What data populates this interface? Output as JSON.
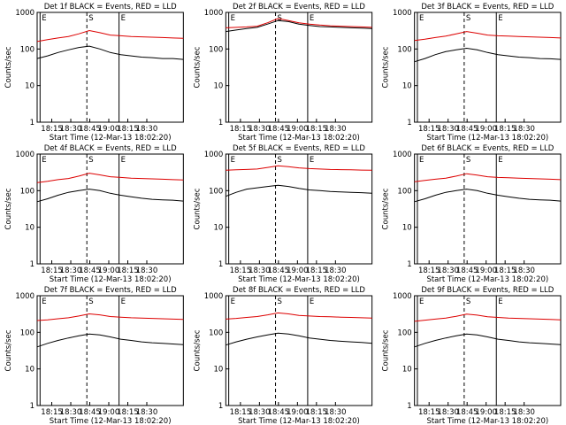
{
  "x_tick_labels": [
    "18:15",
    "18:30",
    "18:45",
    "19:00",
    "18:15",
    "18:30"
  ],
  "y_tick_labels": [
    "1",
    "10",
    "100",
    "1000"
  ],
  "ylabel": "Counts/sec",
  "xlabel": "Start Time (12-Mar-13 18:02:20)",
  "marker_labels": {
    "start": "E",
    "middle": "S",
    "end": "E"
  },
  "colors": {
    "events": "#000000",
    "lld": "#dd0000",
    "axes": "#000000"
  },
  "chart_data": [
    {
      "type": "line",
      "title": "Det 1f BLACK = Events, RED = LLD",
      "x": [
        0,
        1,
        2,
        3,
        4,
        5,
        6,
        7,
        8,
        9,
        10,
        11,
        12,
        13,
        14
      ],
      "series": [
        {
          "values": [
            160,
            180,
            200,
            220,
            260,
            320,
            280,
            240,
            230,
            220,
            215,
            210,
            205,
            200,
            195
          ],
          "color": "#dd0000"
        },
        {
          "values": [
            55,
            65,
            80,
            95,
            110,
            120,
            100,
            80,
            70,
            65,
            60,
            58,
            55,
            55,
            52
          ],
          "color": "#000000"
        }
      ],
      "ylim": [
        1,
        1000
      ],
      "yscale": "log"
    },
    {
      "type": "line",
      "title": "Det 2f BLACK = Events, RED = LLD",
      "x": [
        0,
        1,
        2,
        3,
        4,
        5,
        6,
        7,
        8,
        9,
        10,
        11,
        12,
        13,
        14
      ],
      "series": [
        {
          "values": [
            380,
            390,
            400,
            420,
            520,
            680,
            600,
            520,
            480,
            450,
            430,
            420,
            410,
            400,
            390
          ],
          "color": "#dd0000"
        },
        {
          "values": [
            300,
            330,
            360,
            390,
            480,
            600,
            560,
            480,
            440,
            410,
            400,
            390,
            380,
            370,
            360
          ],
          "color": "#000000"
        }
      ],
      "ylim": [
        1,
        1000
      ],
      "yscale": "log"
    },
    {
      "type": "line",
      "title": "Det 3f BLACK = Events, RED = LLD",
      "x": [
        0,
        1,
        2,
        3,
        4,
        5,
        6,
        7,
        8,
        9,
        10,
        11,
        12,
        13,
        14
      ],
      "series": [
        {
          "values": [
            170,
            185,
            205,
            225,
            260,
            300,
            270,
            240,
            230,
            225,
            220,
            215,
            210,
            205,
            200
          ],
          "color": "#dd0000"
        },
        {
          "values": [
            45,
            55,
            70,
            85,
            95,
            105,
            95,
            80,
            70,
            65,
            60,
            58,
            55,
            54,
            52
          ],
          "color": "#000000"
        }
      ],
      "ylim": [
        1,
        1000
      ],
      "yscale": "log"
    },
    {
      "type": "line",
      "title": "Det 4f BLACK = Events, RED = LLD",
      "x": [
        0,
        1,
        2,
        3,
        4,
        5,
        6,
        7,
        8,
        9,
        10,
        11,
        12,
        13,
        14
      ],
      "series": [
        {
          "values": [
            165,
            180,
            200,
            215,
            250,
            300,
            270,
            240,
            230,
            220,
            215,
            210,
            205,
            200,
            195
          ],
          "color": "#dd0000"
        },
        {
          "values": [
            50,
            60,
            75,
            90,
            100,
            110,
            100,
            85,
            75,
            68,
            62,
            58,
            56,
            55,
            52
          ],
          "color": "#000000"
        }
      ],
      "ylim": [
        1,
        1000
      ],
      "yscale": "log"
    },
    {
      "type": "line",
      "title": "Det 5f BLACK = Events, RED = LLD",
      "x": [
        0,
        1,
        2,
        3,
        4,
        5,
        6,
        7,
        8,
        9,
        10,
        11,
        12,
        13,
        14
      ],
      "series": [
        {
          "values": [
            360,
            370,
            380,
            390,
            430,
            480,
            450,
            420,
            400,
            390,
            380,
            375,
            370,
            365,
            360
          ],
          "color": "#dd0000"
        },
        {
          "values": [
            70,
            90,
            110,
            120,
            130,
            140,
            130,
            115,
            105,
            100,
            95,
            92,
            90,
            88,
            85
          ],
          "color": "#000000"
        }
      ],
      "ylim": [
        1,
        1000
      ],
      "yscale": "log"
    },
    {
      "type": "line",
      "title": "Det 6f BLACK = Events, RED = LLD",
      "x": [
        0,
        1,
        2,
        3,
        4,
        5,
        6,
        7,
        8,
        9,
        10,
        11,
        12,
        13,
        14
      ],
      "series": [
        {
          "values": [
            175,
            190,
            205,
            220,
            250,
            290,
            265,
            240,
            230,
            225,
            220,
            215,
            210,
            205,
            200
          ],
          "color": "#dd0000"
        },
        {
          "values": [
            50,
            60,
            75,
            90,
            100,
            110,
            100,
            85,
            75,
            68,
            62,
            58,
            56,
            55,
            52
          ],
          "color": "#000000"
        }
      ],
      "ylim": [
        1,
        1000
      ],
      "yscale": "log"
    },
    {
      "type": "line",
      "title": "Det 7f BLACK = Events, RED = LLD",
      "x": [
        0,
        1,
        2,
        3,
        4,
        5,
        6,
        7,
        8,
        9,
        10,
        11,
        12,
        13,
        14
      ],
      "series": [
        {
          "values": [
            210,
            220,
            235,
            250,
            280,
            320,
            300,
            270,
            260,
            250,
            245,
            240,
            235,
            230,
            225
          ],
          "color": "#dd0000"
        },
        {
          "values": [
            40,
            50,
            60,
            70,
            80,
            90,
            85,
            75,
            65,
            60,
            55,
            52,
            50,
            48,
            46
          ],
          "color": "#000000"
        }
      ],
      "ylim": [
        1,
        1000
      ],
      "yscale": "log"
    },
    {
      "type": "line",
      "title": "Det 8f BLACK = Events, RED = LLD",
      "x": [
        0,
        1,
        2,
        3,
        4,
        5,
        6,
        7,
        8,
        9,
        10,
        11,
        12,
        13,
        14
      ],
      "series": [
        {
          "values": [
            230,
            240,
            255,
            270,
            300,
            340,
            320,
            290,
            280,
            270,
            265,
            260,
            255,
            250,
            245
          ],
          "color": "#dd0000"
        },
        {
          "values": [
            45,
            55,
            65,
            75,
            85,
            95,
            90,
            80,
            70,
            65,
            60,
            57,
            55,
            53,
            50
          ],
          "color": "#000000"
        }
      ],
      "ylim": [
        1,
        1000
      ],
      "yscale": "log"
    },
    {
      "type": "line",
      "title": "Det 9f BLACK = Events, RED = LLD",
      "x": [
        0,
        1,
        2,
        3,
        4,
        5,
        6,
        7,
        8,
        9,
        10,
        11,
        12,
        13,
        14
      ],
      "series": [
        {
          "values": [
            200,
            215,
            230,
            245,
            275,
            315,
            295,
            265,
            255,
            245,
            240,
            235,
            230,
            225,
            220
          ],
          "color": "#dd0000"
        },
        {
          "values": [
            40,
            50,
            60,
            70,
            80,
            90,
            85,
            75,
            65,
            60,
            55,
            52,
            50,
            48,
            46
          ],
          "color": "#000000"
        }
      ],
      "ylim": [
        1,
        1000
      ],
      "yscale": "log"
    }
  ]
}
